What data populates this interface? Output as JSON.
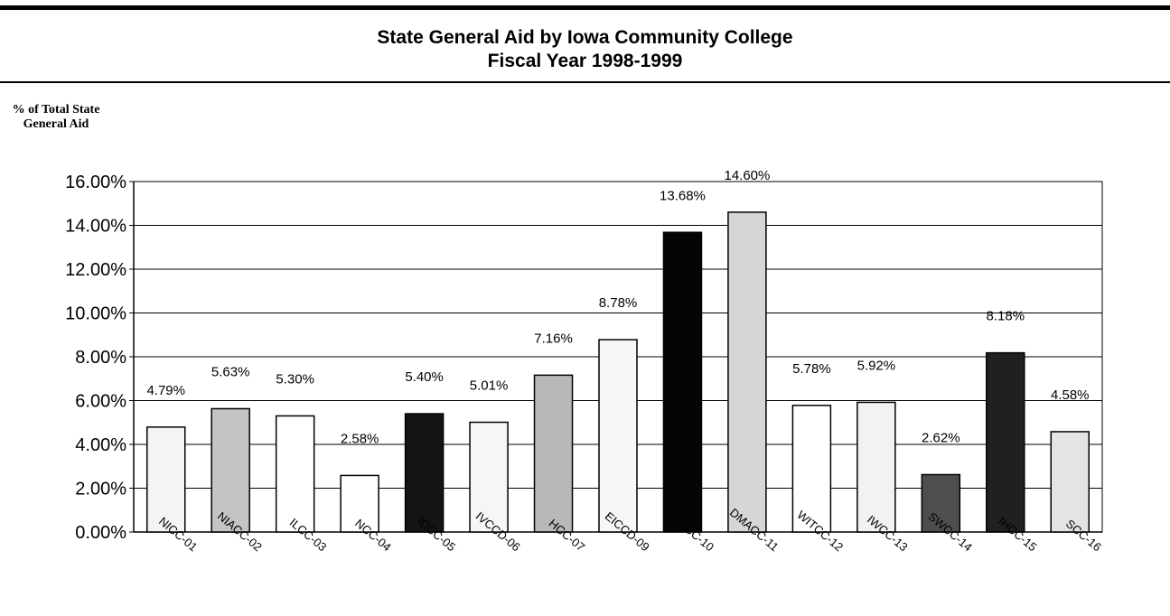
{
  "chart_data": {
    "type": "bar",
    "title": "State General Aid by Iowa Community College",
    "subtitle": "Fiscal Year 1998-1999",
    "ylabel": "% of Total State General Aid",
    "xlabel": "",
    "ylim": [
      0,
      16
    ],
    "yticks": [
      "0.00%",
      "2.00%",
      "4.00%",
      "6.00%",
      "8.00%",
      "10.00%",
      "12.00%",
      "14.00%",
      "16.00%"
    ],
    "grid": true,
    "legend": "none",
    "categories": [
      "NICC-01",
      "NIACC-02",
      "ILCC-03",
      "NCC-04",
      "ICCC-05",
      "IVCCD-06",
      "HCC-07",
      "EICCD-09",
      "KCC-10",
      "DMACC-11",
      "WITCC-12",
      "IWCC-13",
      "SWCC-14",
      "IHCC-15",
      "SCC-16"
    ],
    "values": [
      4.79,
      5.63,
      5.3,
      2.58,
      5.4,
      5.01,
      7.16,
      8.78,
      13.68,
      14.6,
      5.78,
      5.92,
      2.62,
      8.18,
      4.58
    ],
    "data_labels": [
      "4.79%",
      "5.63%",
      "5.30%",
      "2.58%",
      "5.40%",
      "5.01%",
      "7.16%",
      "8.78%",
      "13.68%",
      "14.60%",
      "5.78%",
      "5.92%",
      "2.62%",
      "8.18%",
      "4.58%"
    ],
    "bar_fills": [
      "#f4f4f4",
      "#c4c4c4",
      "#ffffff",
      "#ffffff",
      "#141414",
      "#f6f6f6",
      "#b8b8b8",
      "#f7f7f7",
      "#050505",
      "#d6d6d6",
      "#ffffff",
      "#f2f2f2",
      "#4e4e4e",
      "#202020",
      "#e4e4e4"
    ]
  }
}
